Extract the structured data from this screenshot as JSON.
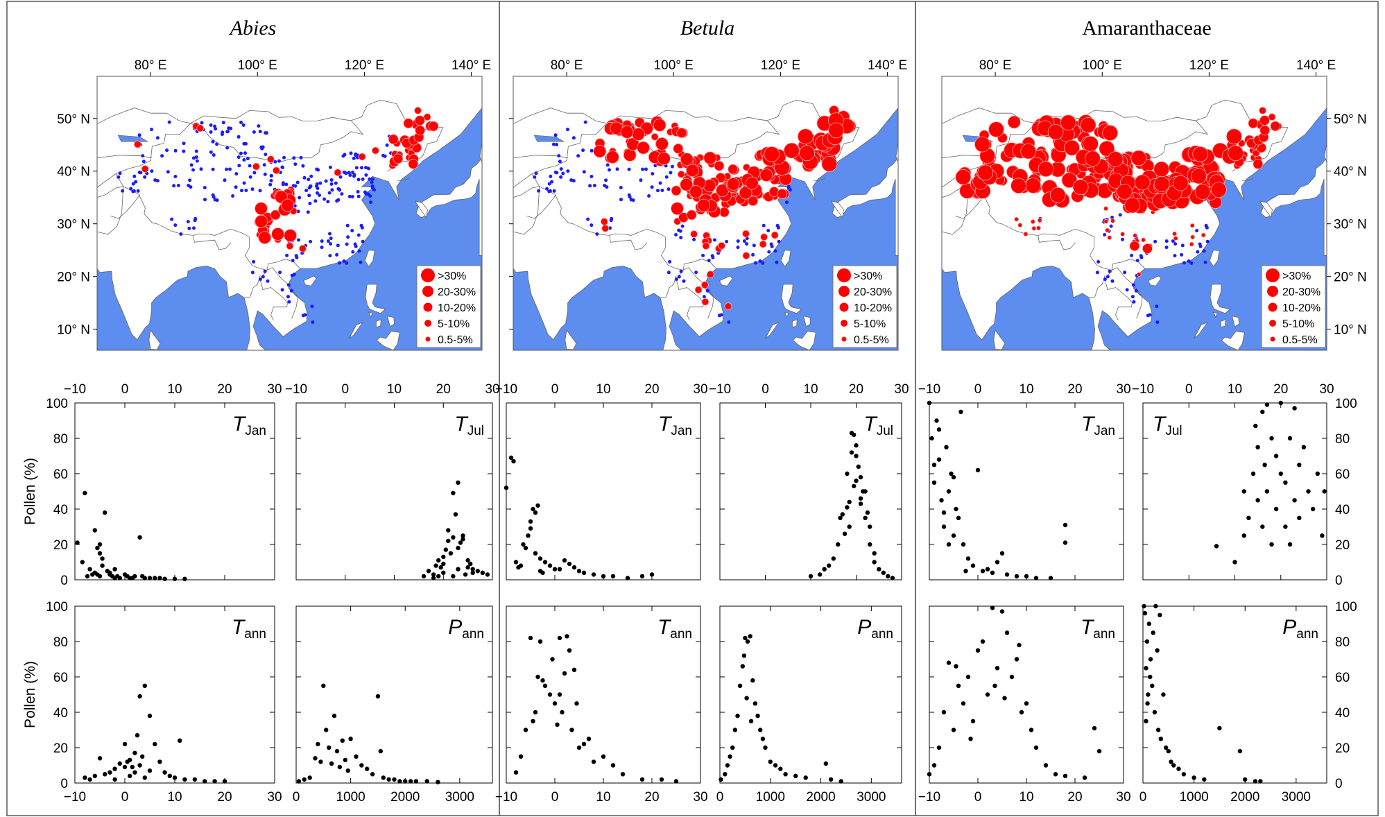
{
  "columns": [
    {
      "title": "Abies",
      "italic": true
    },
    {
      "title": "Betula",
      "italic": true
    },
    {
      "title": "Amaranthaceae",
      "italic": false
    }
  ],
  "map": {
    "lon_ticks": [
      "80° E",
      "100° E",
      "120° E",
      "140° E"
    ],
    "lat_ticks": [
      "50° N",
      "40° N",
      "30° N",
      "20° N",
      "10° N"
    ],
    "lon_range": [
      70,
      142
    ],
    "lat_range": [
      6,
      58
    ],
    "legend": [
      ">30%",
      "20-30%",
      "10-20%",
      "5-10%",
      "0.5-5%"
    ],
    "colors": {
      "sea": "#5c8def",
      "land": "#ffffff",
      "present": "#ff0000",
      "absent": "#1b1bff",
      "border": "#666666"
    }
  },
  "ylabel": "Pollen (%)",
  "panel_labels": {
    "TJan": {
      "main": "T",
      "sub": "Jan"
    },
    "TJul": {
      "main": "T",
      "sub": "Jul"
    },
    "Tann": {
      "main": "T",
      "sub": "ann"
    },
    "Pann": {
      "main": "P",
      "sub": "ann"
    }
  },
  "axes": {
    "temp_ticks": [
      "−10",
      "0",
      "10",
      "20",
      "30"
    ],
    "temp_range": [
      -10,
      30
    ],
    "precip_ticks": [
      "0",
      "1000",
      "2000",
      "3000"
    ],
    "precip_range": [
      0,
      3600
    ],
    "y_ticks": [
      "0",
      "20",
      "40",
      "60",
      "80",
      "100"
    ],
    "y_range": [
      0,
      100
    ]
  },
  "chart_data": [
    {
      "type": "scatter",
      "taxon": "Abies",
      "variable": "TJan",
      "x": [
        -9.5,
        -8.5,
        -8,
        -7,
        -6,
        -5.5,
        -5,
        -5,
        -4.5,
        -4,
        -3.5,
        -3,
        -2.5,
        -2,
        -1.5,
        -1,
        0,
        0.5,
        1,
        2,
        3,
        3.5,
        4,
        5,
        6,
        7,
        8,
        10,
        12,
        -6,
        -4.5,
        -5.5,
        -3,
        -7.5,
        -6.5,
        -5,
        1.5,
        -2
      ],
      "y": [
        21,
        10,
        49,
        6,
        28,
        18,
        15,
        20,
        12,
        38,
        5,
        3,
        2,
        6,
        2,
        1,
        3,
        2,
        1,
        2,
        24,
        2,
        1,
        1,
        1,
        1,
        0.5,
        0.5,
        0.5,
        4,
        8,
        3,
        4,
        2,
        3,
        2,
        1,
        1
      ]
    },
    {
      "type": "scatter",
      "taxon": "Abies",
      "variable": "TJul",
      "x": [
        16,
        17,
        18,
        18.5,
        19,
        19.5,
        20,
        20,
        20.5,
        21,
        21,
        22,
        22,
        22.5,
        23,
        23,
        23.5,
        24,
        24,
        25,
        25,
        25.5,
        26,
        26,
        27,
        28,
        29,
        19,
        21.5,
        20,
        18,
        24.5,
        22,
        23
      ],
      "y": [
        2,
        5,
        3,
        8,
        11,
        7,
        13,
        9,
        17,
        28,
        22,
        49,
        24,
        37,
        18,
        55,
        21,
        25,
        23,
        11,
        7,
        9,
        6,
        4,
        5,
        4,
        3,
        2,
        15,
        4,
        1,
        3,
        2,
        6
      ]
    },
    {
      "type": "scatter",
      "taxon": "Abies",
      "variable": "Tann",
      "x": [
        -8,
        -7,
        -6,
        -5,
        -4,
        -3,
        -2,
        -1,
        0,
        0.5,
        1,
        1.5,
        2,
        2.5,
        3,
        3.5,
        4,
        5,
        6,
        7,
        8,
        9,
        10,
        11,
        12,
        14,
        16,
        18,
        20,
        2,
        4,
        3,
        5,
        -2,
        1,
        0
      ],
      "y": [
        3,
        2,
        4,
        14,
        5,
        6,
        8,
        11,
        22,
        12,
        13,
        9,
        17,
        27,
        49,
        15,
        55,
        38,
        22,
        12,
        6,
        4,
        3,
        24,
        2,
        2,
        1,
        1,
        1,
        6,
        3,
        10,
        7,
        2,
        4,
        9
      ]
    },
    {
      "type": "scatter",
      "taxon": "Abies",
      "variable": "Pann",
      "x": [
        50,
        150,
        250,
        350,
        400,
        450,
        500,
        550,
        600,
        650,
        700,
        750,
        800,
        850,
        900,
        950,
        1000,
        1100,
        1200,
        1300,
        1400,
        1500,
        1550,
        1600,
        1700,
        1800,
        1900,
        2000,
        2100,
        2200,
        2400,
        2600
      ],
      "y": [
        1,
        2,
        3,
        14,
        22,
        12,
        55,
        30,
        20,
        11,
        38,
        18,
        9,
        24,
        13,
        7,
        25,
        15,
        10,
        8,
        5,
        49,
        18,
        3,
        2,
        2,
        1,
        1,
        1,
        1,
        1,
        0.5
      ]
    },
    {
      "type": "scatter",
      "taxon": "Betula",
      "variable": "TJan",
      "x": [
        -10,
        -9,
        -8.5,
        -8,
        -7,
        -6,
        -5.5,
        -5,
        -4.5,
        -4,
        -3.5,
        -3,
        -2,
        -1,
        0,
        1,
        2,
        3,
        4,
        5,
        6,
        8,
        10,
        12,
        15,
        18,
        20,
        -6.5,
        -5,
        -4,
        -7.5,
        -3,
        -2.5
      ],
      "y": [
        52,
        69,
        67,
        10,
        8,
        18,
        25,
        33,
        40,
        38,
        42,
        12,
        10,
        8,
        6,
        6,
        11,
        9,
        7,
        5,
        4,
        3,
        2,
        2,
        1,
        2,
        3,
        20,
        29,
        15,
        7,
        5,
        4
      ]
    },
    {
      "type": "scatter",
      "taxon": "Betula",
      "variable": "TJul",
      "x": [
        10,
        12,
        13,
        14,
        15,
        16,
        16.5,
        17,
        17.5,
        18,
        18,
        18.5,
        19,
        19,
        19.5,
        20,
        20,
        20.5,
        21,
        21,
        21.5,
        22,
        22,
        22.5,
        23,
        23,
        24,
        24,
        25,
        26,
        27,
        28,
        19.5,
        21,
        20,
        18.5
      ],
      "y": [
        2,
        3,
        6,
        8,
        12,
        20,
        35,
        37,
        26,
        41,
        60,
        44,
        72,
        83,
        82,
        56,
        70,
        64,
        43,
        58,
        50,
        50,
        35,
        38,
        30,
        20,
        15,
        10,
        6,
        4,
        2,
        1,
        53,
        46,
        76,
        30
      ]
    },
    {
      "type": "scatter",
      "taxon": "Betula",
      "variable": "Tann",
      "x": [
        -8,
        -7,
        -6,
        -5,
        -4,
        -3.5,
        -3,
        -2,
        -1,
        -0.5,
        0,
        1,
        1.5,
        2,
        2.5,
        3,
        3.5,
        4,
        5,
        6,
        7,
        8,
        10,
        12,
        14,
        18,
        22,
        25,
        -4.5,
        -2.5,
        0.5,
        4.5,
        1
      ],
      "y": [
        6,
        15,
        30,
        82,
        40,
        60,
        80,
        55,
        50,
        70,
        45,
        82,
        40,
        62,
        83,
        75,
        30,
        64,
        20,
        22,
        25,
        12,
        15,
        10,
        5,
        2,
        2,
        1,
        35,
        58,
        33,
        45,
        50
      ]
    },
    {
      "type": "scatter",
      "taxon": "Betula",
      "variable": "Pann",
      "x": [
        20,
        100,
        150,
        200,
        250,
        300,
        350,
        400,
        450,
        500,
        550,
        600,
        650,
        700,
        750,
        800,
        850,
        900,
        1000,
        1100,
        1200,
        1300,
        1500,
        1700,
        2100,
        2200,
        2400,
        480,
        530,
        620
      ],
      "y": [
        2,
        5,
        10,
        15,
        20,
        30,
        38,
        55,
        66,
        82,
        80,
        83,
        58,
        45,
        38,
        30,
        25,
        20,
        12,
        10,
        8,
        5,
        4,
        3,
        11,
        2,
        1,
        72,
        48,
        35
      ]
    },
    {
      "type": "scatter",
      "taxon": "Amaranthaceae",
      "variable": "TJan",
      "x": [
        -10,
        -9.5,
        -9,
        -8.5,
        -8,
        -7.5,
        -7,
        -6.5,
        -6,
        -5.5,
        -5,
        -4.5,
        -4,
        -3.5,
        -3,
        -2,
        -1,
        0,
        1,
        2,
        3,
        4,
        5,
        6,
        8,
        10,
        12,
        15,
        18,
        18,
        -9,
        -8,
        -6,
        -7,
        -5,
        -2.5
      ],
      "y": [
        100,
        80,
        55,
        90,
        68,
        45,
        30,
        75,
        50,
        60,
        25,
        40,
        35,
        95,
        20,
        12,
        8,
        62,
        5,
        6,
        4,
        10,
        15,
        3,
        2,
        2,
        1,
        1,
        31,
        21,
        65,
        85,
        20,
        38,
        58,
        5
      ]
    },
    {
      "type": "scatter",
      "taxon": "Amaranthaceae",
      "variable": "TJul",
      "x": [
        6,
        10,
        12,
        12,
        13,
        14,
        14.5,
        15,
        15,
        16,
        16,
        16.5,
        17,
        17,
        18,
        18,
        19,
        19,
        20,
        20,
        21,
        21,
        22,
        22,
        23,
        23,
        24,
        24,
        25,
        26,
        27,
        28,
        29,
        29.5
      ],
      "y": [
        19,
        10,
        25,
        50,
        35,
        60,
        87,
        45,
        75,
        30,
        95,
        65,
        99,
        50,
        20,
        80,
        40,
        70,
        60,
        100,
        30,
        55,
        80,
        20,
        45,
        97,
        65,
        35,
        75,
        50,
        40,
        60,
        25,
        50
      ]
    },
    {
      "type": "scatter",
      "taxon": "Amaranthaceae",
      "variable": "Tann",
      "x": [
        -10,
        -9,
        -8,
        -7,
        -6,
        -5,
        -4,
        -3,
        -2,
        -1,
        0,
        1,
        2,
        3,
        4,
        5,
        6,
        7,
        8,
        9,
        10,
        11,
        12,
        14,
        16,
        18,
        22,
        24,
        25,
        -4.5,
        3.5,
        8.5,
        -1.5,
        5.5
      ],
      "y": [
        5,
        10,
        20,
        40,
        68,
        30,
        55,
        45,
        60,
        35,
        75,
        80,
        50,
        99,
        65,
        97,
        85,
        60,
        70,
        40,
        45,
        30,
        20,
        10,
        5,
        4,
        3,
        31,
        18,
        66,
        55,
        78,
        25,
        48
      ]
    },
    {
      "type": "scatter",
      "taxon": "Amaranthaceae",
      "variable": "Pann",
      "x": [
        20,
        40,
        60,
        80,
        100,
        120,
        150,
        180,
        200,
        230,
        250,
        280,
        300,
        350,
        400,
        450,
        500,
        550,
        600,
        700,
        800,
        1000,
        1200,
        1500,
        1900,
        2000,
        2200,
        2300,
        60,
        90,
        140,
        330
      ],
      "y": [
        100,
        96,
        65,
        80,
        50,
        90,
        70,
        55,
        85,
        40,
        100,
        75,
        30,
        25,
        50,
        20,
        18,
        12,
        10,
        8,
        5,
        3,
        2,
        31,
        18,
        2,
        1,
        1,
        35,
        45,
        60,
        95
      ]
    }
  ]
}
